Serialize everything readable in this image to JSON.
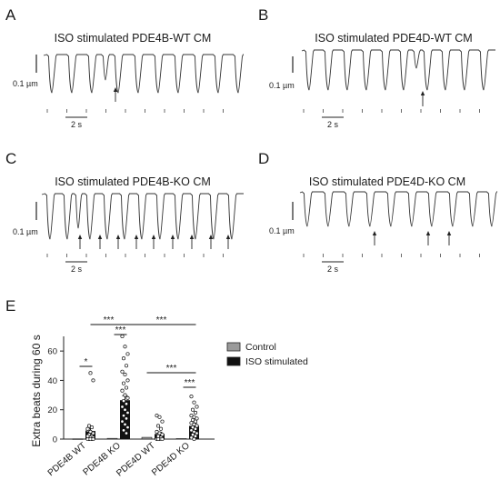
{
  "traces": [
    {
      "letter": "A",
      "title": "ISO stimulated PDE4B-WT CM",
      "scale_y": "0.1 µm",
      "scale_x": "2 s"
    },
    {
      "letter": "B",
      "title": "ISO stimulated PDE4D-WT CM",
      "scale_y": "0.1 µm",
      "scale_x": "2 s"
    },
    {
      "letter": "C",
      "title": "ISO stimulated PDE4B-KO CM",
      "scale_y": "0.1 µm",
      "scale_x": "2 s"
    },
    {
      "letter": "D",
      "title": "ISO stimulated PDE4D-KO CM",
      "scale_y": "0.1 µm",
      "scale_x": "2 s"
    }
  ],
  "chart_panel_letter": "E",
  "chart_data": {
    "type": "bar",
    "categories": [
      "PDE4B WT",
      "PDE4B KO",
      "PDE4D WT",
      "PDE4D KO"
    ],
    "series": [
      {
        "name": "Control",
        "color": "#9a9a9a",
        "values": [
          0.2,
          0.5,
          1.2,
          0.4
        ]
      },
      {
        "name": "ISO stimulated",
        "color": "#111111",
        "values": [
          5.5,
          26.5,
          3.5,
          9.0
        ]
      }
    ],
    "errors": {
      "Control": [
        0.2,
        0.3,
        0.4,
        0.2
      ],
      "ISO stimulated": [
        1.8,
        3.0,
        1.2,
        1.8
      ]
    },
    "ylabel": "Extra  beats during 60 s",
    "ylim": [
      0,
      70
    ],
    "yticks": [
      0,
      20,
      40,
      60
    ],
    "legend_position": "right",
    "significance": [
      "*",
      "***",
      "***",
      "***",
      "***",
      "***"
    ]
  }
}
